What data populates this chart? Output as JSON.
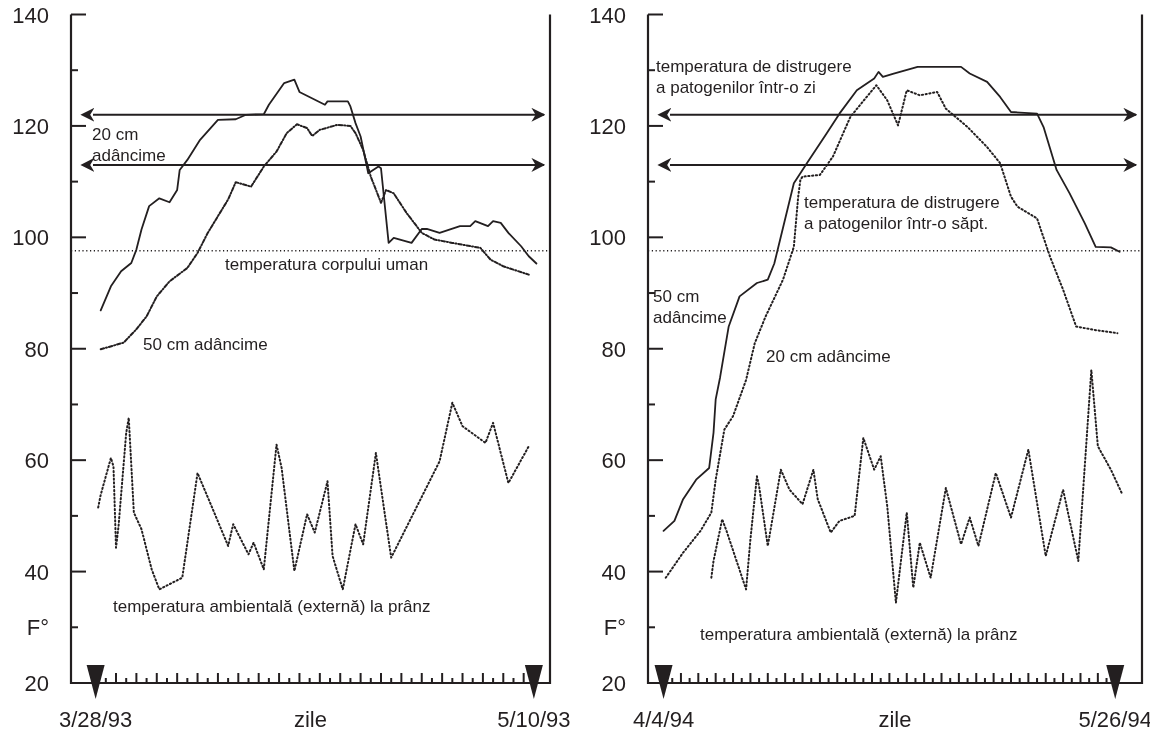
{
  "chart_data": [
    {
      "type": "line",
      "xlabel": "zile",
      "ylabel": "F°",
      "xlim": [
        "1993-03-25T14:00",
        "1993-05-11T14:00"
      ],
      "ylim": [
        20,
        140
      ],
      "xticks": [
        {
          "value": "1993-03-28",
          "label": "3/28/93"
        },
        {
          "value": "1993-03-29",
          "label": null
        },
        {
          "value": "1993-03-30",
          "label": null
        },
        {
          "value": "1993-03-31",
          "label": null
        },
        {
          "value": "1993-04-01",
          "label": null
        },
        {
          "value": "1993-04-02",
          "label": null
        },
        {
          "value": "1993-04-03",
          "label": null
        },
        {
          "value": "1993-04-04",
          "label": null
        },
        {
          "value": "1993-04-05",
          "label": null
        },
        {
          "value": "1993-04-06",
          "label": null
        },
        {
          "value": "1993-04-07",
          "label": null
        },
        {
          "value": "1993-04-08",
          "label": null
        },
        {
          "value": "1993-04-09",
          "label": null
        },
        {
          "value": "1993-04-10",
          "label": null
        },
        {
          "value": "1993-04-11",
          "label": null
        },
        {
          "value": "1993-04-12",
          "label": null
        },
        {
          "value": "1993-04-13",
          "label": null
        },
        {
          "value": "1993-04-14",
          "label": null
        },
        {
          "value": "1993-04-15",
          "label": null
        },
        {
          "value": "1993-04-16",
          "label": null
        },
        {
          "value": "1993-04-17",
          "label": null
        },
        {
          "value": "1993-04-18",
          "label": null
        },
        {
          "value": "1993-04-19",
          "label": null
        },
        {
          "value": "1993-04-20",
          "label": null
        },
        {
          "value": "1993-04-21",
          "label": null
        },
        {
          "value": "1993-04-22",
          "label": null
        },
        {
          "value": "1993-04-23",
          "label": null
        },
        {
          "value": "1993-04-24",
          "label": null
        },
        {
          "value": "1993-04-25",
          "label": null
        },
        {
          "value": "1993-04-26",
          "label": null
        },
        {
          "value": "1993-04-27",
          "label": null
        },
        {
          "value": "1993-04-28",
          "label": null
        },
        {
          "value": "1993-04-29",
          "label": null
        },
        {
          "value": "1993-04-30",
          "label": null
        },
        {
          "value": "1993-05-01",
          "label": null
        },
        {
          "value": "1993-05-02",
          "label": null
        },
        {
          "value": "1993-05-03",
          "label": null
        },
        {
          "value": "1993-05-04",
          "label": null
        },
        {
          "value": "1993-05-05",
          "label": null
        },
        {
          "value": "1993-05-06",
          "label": null
        },
        {
          "value": "1993-05-07",
          "label": null
        },
        {
          "value": "1993-05-08",
          "label": null
        },
        {
          "value": "1993-05-09",
          "label": null
        },
        {
          "value": "1993-05-10",
          "label": "5/10/93"
        }
      ],
      "yticks": [
        20,
        {
          "value": 30,
          "label": null
        },
        40,
        {
          "value": 50,
          "label": null
        },
        60,
        {
          "value": 70,
          "label": null
        },
        80,
        {
          "value": 90,
          "label": null
        },
        100,
        {
          "value": 110,
          "label": null
        },
        120,
        {
          "value": 130,
          "label": null
        },
        140
      ],
      "series": [
        {
          "name": "20 cm adâncime",
          "color": "#231f20",
          "line_style": "solid",
          "x": [
            "1993-03-28T12:00",
            "1993-03-29T12:00",
            "1993-03-30T12:00",
            "1993-03-31T12:00",
            "1993-04-01T00:00",
            "1993-04-01T12:00",
            "1993-04-02T06:00",
            "1993-04-03T06:00",
            "1993-04-04T06:00",
            "1993-04-05T00:00",
            "1993-04-05T06:00",
            "1993-04-06T00:00",
            "1993-04-07T06:00",
            "1993-04-09T00:00",
            "1993-04-10T18:00",
            "1993-04-11T18:00",
            "1993-04-13T12:00",
            "1993-04-14T00:00",
            "1993-04-15T12:00",
            "1993-04-16T12:00",
            "1993-04-17T00:00",
            "1993-04-19T12:00",
            "1993-04-19T18:00",
            "1993-04-21T18:00",
            "1993-04-22T00:00",
            "1993-04-22T12:00",
            "1993-04-23T00:00",
            "1993-04-23T18:00",
            "1993-04-24T18:00",
            "1993-04-25T00:00",
            "1993-04-25T18:00",
            "1993-04-26T06:00",
            "1993-04-28T00:00",
            "1993-04-29T00:00",
            "1993-04-29T12:00",
            "1993-04-30T18:00",
            "1993-05-02T18:00",
            "1993-05-03T18:00",
            "1993-05-04T06:00",
            "1993-05-05T12:00",
            "1993-05-06T00:00",
            "1993-05-06T18:00",
            "1993-05-07T12:00",
            "1993-05-08T18:00",
            "1993-05-09T12:00",
            "1993-05-10T06:00"
          ],
          "values": [
            86.9,
            91.2,
            93.9,
            95.4,
            97.8,
            101.4,
            105.6,
            107.0,
            106.3,
            108.5,
            112.1,
            113.9,
            117.5,
            121.1,
            121.2,
            122.0,
            122.1,
            123.8,
            127.7,
            128.3,
            126.1,
            123.8,
            124.4,
            124.4,
            123.5,
            120.5,
            118.1,
            111.5,
            112.7,
            112.4,
            99.0,
            99.9,
            99.0,
            101.5,
            101.5,
            100.8,
            102.0,
            102.0,
            102.9,
            102.0,
            102.9,
            102.6,
            100.8,
            98.4,
            96.6,
            95.3
          ]
        },
        {
          "name": "50 cm adâncime",
          "color": "#231f20",
          "line_style": "dashed",
          "x": [
            "1993-03-28T12:00",
            "1993-03-30T18:00",
            "1993-04-01T00:00",
            "1993-04-02T00:00",
            "1993-04-03T00:00",
            "1993-04-04T06:00",
            "1993-04-06T00:00",
            "1993-04-07T00:00",
            "1993-04-08T00:00",
            "1993-04-09T00:00",
            "1993-04-10T00:00",
            "1993-04-10T18:00",
            "1993-04-12T06:00",
            "1993-04-13T12:00",
            "1993-04-14T18:00",
            "1993-04-15T18:00",
            "1993-04-16T18:00",
            "1993-04-17T18:00",
            "1993-04-18T06:00",
            "1993-04-19T00:00",
            "1993-04-20T18:00",
            "1993-04-22T00:00",
            "1993-04-22T12:00",
            "1993-04-23T06:00",
            "1993-04-24T00:00",
            "1993-04-25T00:00",
            "1993-04-25T12:00",
            "1993-04-26T06:00",
            "1993-04-27T12:00",
            "1993-04-29T00:00",
            "1993-04-30T06:00",
            "1993-05-02T00:00",
            "1993-05-04T18:00",
            "1993-05-05T18:00",
            "1993-05-07T00:00",
            "1993-05-09T12:00"
          ],
          "values": [
            79.9,
            81.1,
            83.5,
            85.8,
            89.4,
            92.1,
            94.5,
            97.2,
            100.8,
            103.8,
            106.8,
            109.9,
            109.1,
            112.7,
            115.4,
            118.7,
            120.3,
            119.6,
            118.2,
            119.3,
            120.2,
            120.0,
            118.7,
            115.7,
            110.9,
            106.2,
            108.5,
            107.9,
            104.4,
            100.8,
            99.6,
            99.0,
            98.1,
            96.0,
            94.8,
            93.3
          ]
        },
        {
          "name": "temperatura ambientală (externă) la prânz",
          "color": "#231f20",
          "line_style": "dotted",
          "x": [
            "1993-03-28T06:00",
            "1993-03-28T12:00",
            "1993-03-29T12:00",
            "1993-03-29T18:00",
            "1993-03-30T00:00",
            "1993-03-30T06:00",
            "1993-03-31T00:00",
            "1993-03-31T06:00",
            "1993-03-31T18:00",
            "1993-04-01T12:00",
            "1993-04-02T12:00",
            "1993-04-03T06:00",
            "1993-04-05T12:00",
            "1993-04-07T00:00",
            "1993-04-08T12:00",
            "1993-04-10T00:00",
            "1993-04-10T12:00",
            "1993-04-12T00:00",
            "1993-04-12T12:00",
            "1993-04-13T12:00",
            "1993-04-14T18:00",
            "1993-04-15T06:00",
            "1993-04-16T12:00",
            "1993-04-17T18:00",
            "1993-04-18T12:00",
            "1993-04-19T18:00",
            "1993-04-20T06:00",
            "1993-04-21T06:00",
            "1993-04-22T12:00",
            "1993-04-23T06:00",
            "1993-04-24T12:00",
            "1993-04-26T00:00",
            "1993-04-30T18:00",
            "1993-05-02T00:00",
            "1993-05-03T00:00",
            "1993-05-05T06:00",
            "1993-05-06T00:00",
            "1993-05-07T12:00",
            "1993-05-09T12:00"
          ],
          "values": [
            51.5,
            53.8,
            60.4,
            58.9,
            44.3,
            48.2,
            64.9,
            67.6,
            50.6,
            47.6,
            40.4,
            36.8,
            38.9,
            57.7,
            51.2,
            44.6,
            48.5,
            43.1,
            45.2,
            40.4,
            62.8,
            58.6,
            40.1,
            50.3,
            47.0,
            56.2,
            42.8,
            36.8,
            48.5,
            44.9,
            61.3,
            42.5,
            59.8,
            70.3,
            66.1,
            63.1,
            66.7,
            55.9,
            62.5
          ]
        }
      ],
      "ref_lines": [
        {
          "axis": "y",
          "value": 122,
          "line_style": "solid"
        },
        {
          "axis": "y",
          "value": 113,
          "line_style": "solid"
        },
        {
          "axis": "y",
          "value": 97.6,
          "label": "temperatura corpului uman",
          "line_style": "dotted"
        }
      ]
    },
    {
      "type": "line",
      "xlabel": "zile",
      "ylabel": "F°",
      "xlim": [
        "1994-04-02T05:00",
        "1994-05-29T02:00"
      ],
      "ylim": [
        20,
        140
      ],
      "xticks": [
        {
          "value": "1994-04-04",
          "label": "4/4/94"
        },
        {
          "value": "1994-04-05",
          "label": null
        },
        {
          "value": "1994-04-06",
          "label": null
        },
        {
          "value": "1994-04-07",
          "label": null
        },
        {
          "value": "1994-04-08",
          "label": null
        },
        {
          "value": "1994-04-09",
          "label": null
        },
        {
          "value": "1994-04-10",
          "label": null
        },
        {
          "value": "1994-04-11",
          "label": null
        },
        {
          "value": "1994-04-12",
          "label": null
        },
        {
          "value": "1994-04-13",
          "label": null
        },
        {
          "value": "1994-04-14",
          "label": null
        },
        {
          "value": "1994-04-15",
          "label": null
        },
        {
          "value": "1994-04-16",
          "label": null
        },
        {
          "value": "1994-04-17",
          "label": null
        },
        {
          "value": "1994-04-18",
          "label": null
        },
        {
          "value": "1994-04-19",
          "label": null
        },
        {
          "value": "1994-04-20",
          "label": null
        },
        {
          "value": "1994-04-21",
          "label": null
        },
        {
          "value": "1994-04-22",
          "label": null
        },
        {
          "value": "1994-04-23",
          "label": null
        },
        {
          "value": "1994-04-24",
          "label": null
        },
        {
          "value": "1994-04-25",
          "label": null
        },
        {
          "value": "1994-04-26",
          "label": null
        },
        {
          "value": "1994-04-27",
          "label": null
        },
        {
          "value": "1994-04-28",
          "label": null
        },
        {
          "value": "1994-04-29",
          "label": null
        },
        {
          "value": "1994-04-30",
          "label": null
        },
        {
          "value": "1994-05-01",
          "label": null
        },
        {
          "value": "1994-05-02",
          "label": null
        },
        {
          "value": "1994-05-03",
          "label": null
        },
        {
          "value": "1994-05-04",
          "label": null
        },
        {
          "value": "1994-05-05",
          "label": null
        },
        {
          "value": "1994-05-06",
          "label": null
        },
        {
          "value": "1994-05-07",
          "label": null
        },
        {
          "value": "1994-05-08",
          "label": null
        },
        {
          "value": "1994-05-09",
          "label": null
        },
        {
          "value": "1994-05-10",
          "label": null
        },
        {
          "value": "1994-05-11",
          "label": null
        },
        {
          "value": "1994-05-12",
          "label": null
        },
        {
          "value": "1994-05-13",
          "label": null
        },
        {
          "value": "1994-05-14",
          "label": null
        },
        {
          "value": "1994-05-15",
          "label": null
        },
        {
          "value": "1994-05-16",
          "label": null
        },
        {
          "value": "1994-05-17",
          "label": null
        },
        {
          "value": "1994-05-18",
          "label": null
        },
        {
          "value": "1994-05-19",
          "label": null
        },
        {
          "value": "1994-05-20",
          "label": null
        },
        {
          "value": "1994-05-21",
          "label": null
        },
        {
          "value": "1994-05-22",
          "label": null
        },
        {
          "value": "1994-05-23",
          "label": null
        },
        {
          "value": "1994-05-24",
          "label": null
        },
        {
          "value": "1994-05-25",
          "label": null
        },
        {
          "value": "1994-05-26",
          "label": "5/26/94"
        }
      ],
      "yticks": [
        20,
        {
          "value": 30,
          "label": null
        },
        40,
        {
          "value": 50,
          "label": null
        },
        60,
        {
          "value": 70,
          "label": null
        },
        80,
        {
          "value": 90,
          "label": null
        },
        100,
        {
          "value": 110,
          "label": null
        },
        120,
        {
          "value": 130,
          "label": null
        },
        140
      ],
      "series": [
        {
          "name": "50 cm adâncime",
          "color": "#231f20",
          "line_style": "solid",
          "x": [
            "1994-04-04T00:00",
            "1994-04-05T06:00",
            "1994-04-06T06:00",
            "1994-04-07T18:00",
            "1994-04-09T06:00",
            "1994-04-09T18:00",
            "1994-04-10T00:00",
            "1994-04-10T12:00",
            "1994-04-11T12:00",
            "1994-04-12T18:00",
            "1994-04-14T18:00",
            "1994-04-16T00:00",
            "1994-04-16T18:00",
            "1994-04-17T12:00",
            "1994-04-19T00:00",
            "1994-04-20T12:00",
            "1994-04-22T18:00",
            "1994-04-24T06:00",
            "1994-04-26T06:00",
            "1994-04-28T06:00",
            "1994-04-28T18:00",
            "1994-04-29T06:00",
            "1994-04-30T12:00",
            "1994-05-03T06:00",
            "1994-05-08T06:00",
            "1994-05-09T06:00",
            "1994-05-11T06:00",
            "1994-05-12T18:00",
            "1994-05-14T00:00",
            "1994-05-17T00:00",
            "1994-05-17T18:00",
            "1994-05-19T06:00",
            "1994-05-20T18:00",
            "1994-05-22T12:00",
            "1994-05-23T18:00",
            "1994-05-25T12:00",
            "1994-05-26T12:00"
          ],
          "values": [
            47.3,
            49.1,
            53.0,
            56.5,
            58.6,
            64.9,
            70.9,
            74.8,
            84.0,
            89.4,
            91.8,
            92.4,
            95.3,
            100.1,
            109.7,
            113.3,
            118.6,
            122.2,
            126.4,
            128.5,
            129.7,
            128.8,
            129.4,
            130.6,
            130.6,
            129.4,
            127.9,
            125.2,
            122.5,
            122.2,
            119.8,
            112.1,
            107.9,
            102.5,
            98.3,
            98.2,
            97.4
          ]
        },
        {
          "name": "20 cm adâncime",
          "color": "#231f20",
          "line_style": "dotted",
          "x": [
            "1994-04-04T06:00",
            "1994-04-06T06:00",
            "1994-04-08T06:00",
            "1994-04-09T12:00",
            "1994-04-10T00:00",
            "1994-04-11T00:00",
            "1994-04-12T00:00",
            "1994-04-13T12:00",
            "1994-04-14T12:00",
            "1994-04-15T18:00",
            "1994-04-17T18:00",
            "1994-04-19T00:00",
            "1994-04-19T12:00",
            "1994-04-19T18:00",
            "1994-04-20T00:00",
            "1994-04-22T00:00",
            "1994-04-23T12:00",
            "1994-04-25T12:00",
            "1994-04-26T18:00",
            "1994-04-28T12:00",
            "1994-04-29T18:00",
            "1994-05-01T00:00",
            "1994-05-02T00:00",
            "1994-05-03T12:00",
            "1994-05-05T12:00",
            "1994-05-06T12:00",
            "1994-05-09T00:00",
            "1994-05-11T06:00",
            "1994-05-12T18:00",
            "1994-05-14T00:00",
            "1994-05-14T18:00",
            "1994-05-17T00:00",
            "1994-05-18T12:00",
            "1994-05-20T00:00",
            "1994-05-21T12:00",
            "1994-05-23T12:00",
            "1994-05-26T06:00"
          ],
          "values": [
            38.9,
            43.4,
            47.3,
            50.6,
            56.5,
            65.5,
            67.9,
            74.4,
            81.0,
            85.8,
            92.4,
            98.3,
            107.3,
            110.3,
            110.9,
            111.2,
            114.5,
            121.6,
            124.0,
            127.3,
            124.6,
            120.1,
            126.4,
            125.5,
            126.1,
            123.1,
            119.8,
            116.2,
            113.3,
            107.3,
            105.5,
            103.4,
            96.5,
            90.6,
            84.0,
            83.4,
            82.8
          ]
        },
        {
          "name": "temperatura ambientală (externă) la prânz",
          "color": "#231f20",
          "line_style": "dotted",
          "x": [
            "1994-04-09T12:00",
            "1994-04-09T18:00",
            "1994-04-10T18:00",
            "1994-04-11T06:00",
            "1994-04-13T12:00",
            "1994-04-14T00:00",
            "1994-04-14T18:00",
            "1994-04-15T00:00",
            "1994-04-16T00:00",
            "1994-04-17T12:00",
            "1994-04-18T12:00",
            "1994-04-20T00:00",
            "1994-04-21T06:00",
            "1994-04-21T18:00",
            "1994-04-23T06:00",
            "1994-04-24T06:00",
            "1994-04-26T00:00",
            "1994-04-27T00:00",
            "1994-04-28T06:00",
            "1994-04-29T00:00",
            "1994-04-29T18:00",
            "1994-04-30T18:00",
            "1994-05-02T00:00",
            "1994-05-02T18:00",
            "1994-05-03T12:00",
            "1994-05-04T18:00",
            "1994-05-06T12:00",
            "1994-05-08T06:00",
            "1994-05-09T06:00",
            "1994-05-10T06:00",
            "1994-05-12T06:00",
            "1994-05-14T00:00",
            "1994-05-16T00:00",
            "1994-05-18T00:00",
            "1994-05-20T00:00",
            "1994-05-21T18:00",
            "1994-05-23T06:00",
            "1994-05-24T00:00",
            "1994-05-25T12:00",
            "1994-05-26T18:00"
          ],
          "values": [
            38.9,
            41.9,
            49.4,
            47.3,
            36.8,
            45.8,
            57.1,
            55.3,
            44.6,
            58.3,
            54.7,
            52.1,
            58.3,
            53.0,
            47.0,
            49.1,
            50.0,
            64.0,
            58.3,
            60.7,
            51.8,
            34.4,
            50.6,
            37.1,
            45.2,
            38.9,
            55.0,
            44.9,
            49.7,
            44.6,
            57.7,
            49.7,
            61.9,
            42.8,
            54.7,
            41.9,
            76.2,
            62.5,
            58.3,
            54.1
          ]
        }
      ],
      "ref_lines": [
        {
          "axis": "y",
          "value": 122,
          "label": "temperatura de distrugere a patogenilor într-o zi",
          "line_style": "solid"
        },
        {
          "axis": "y",
          "value": 113,
          "label": "temperatura de distrugere a patogenilor într-o săpt.",
          "line_style": "solid"
        },
        {
          "axis": "y",
          "value": 97.6,
          "line_style": "dotted"
        }
      ]
    }
  ]
}
